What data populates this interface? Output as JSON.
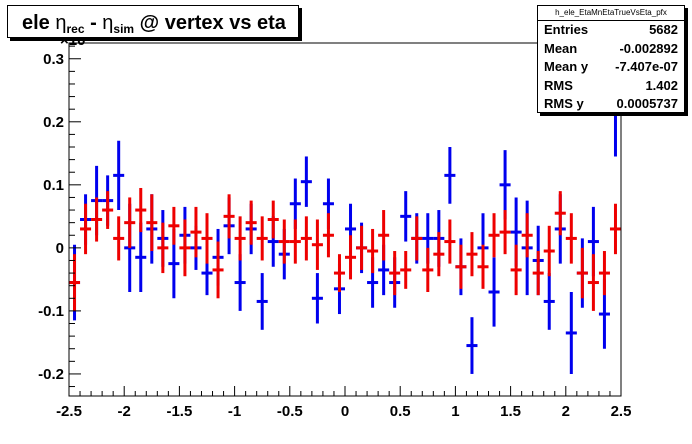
{
  "title": {
    "pre": "ele ",
    "eta1": "η",
    "sub1": "rec",
    "mid": " - ",
    "eta2": "η",
    "sub2": "sim",
    "post": " @ vertex vs eta"
  },
  "exponent_label": "×10",
  "stats": {
    "name": "h_ele_EtaMnEtaTrueVsEta_pfx",
    "rows": [
      {
        "label": "Entries",
        "value": "5682"
      },
      {
        "label": "Mean",
        "value": "-0.002892"
      },
      {
        "label": "Mean y",
        "value": "-7.407e-07"
      },
      {
        "label": "RMS",
        "value": "1.402"
      },
      {
        "label": "RMS y",
        "value": "0.0005737"
      }
    ]
  },
  "chart_data": {
    "type": "scatter",
    "xlim": [
      -2.5,
      2.5
    ],
    "ylim": [
      -0.235,
      0.325
    ],
    "xticks": [
      "-2.5",
      "-2",
      "-1.5",
      "-1",
      "-0.5",
      "0",
      "0.5",
      "1",
      "1.5",
      "2",
      "2.5"
    ],
    "yticks": [
      "-0.2",
      "-0.1",
      "0",
      "0.1",
      "0.2",
      "0.3"
    ],
    "colors": {
      "blue": "#0000ee",
      "red": "#ee0000"
    },
    "blue_series": [
      [
        -2.45,
        -0.055,
        0.06
      ],
      [
        -2.35,
        0.045,
        0.04
      ],
      [
        -2.25,
        0.075,
        0.055
      ],
      [
        -2.15,
        0.075,
        0.04
      ],
      [
        -2.05,
        0.115,
        0.055
      ],
      [
        -1.95,
        0.0,
        0.07
      ],
      [
        -1.85,
        -0.015,
        0.055
      ],
      [
        -1.75,
        0.03,
        0.055
      ],
      [
        -1.65,
        0.015,
        0.045
      ],
      [
        -1.55,
        -0.025,
        0.055
      ],
      [
        -1.45,
        0.02,
        0.045
      ],
      [
        -1.35,
        0.0,
        0.035
      ],
      [
        -1.25,
        -0.04,
        0.035
      ],
      [
        -1.15,
        -0.015,
        0.045
      ],
      [
        -1.05,
        0.035,
        0.045
      ],
      [
        -0.95,
        -0.055,
        0.045
      ],
      [
        -0.85,
        0.03,
        0.04
      ],
      [
        -0.75,
        -0.085,
        0.045
      ],
      [
        -0.65,
        0.01,
        0.04
      ],
      [
        -0.55,
        -0.01,
        0.04
      ],
      [
        -0.45,
        0.07,
        0.04
      ],
      [
        -0.35,
        0.105,
        0.04
      ],
      [
        -0.25,
        -0.08,
        0.04
      ],
      [
        -0.15,
        0.07,
        0.04
      ],
      [
        -0.05,
        -0.065,
        0.04
      ],
      [
        0.05,
        0.03,
        0.04
      ],
      [
        0.15,
        0.0,
        0.04
      ],
      [
        0.25,
        -0.055,
        0.04
      ],
      [
        0.35,
        -0.035,
        0.04
      ],
      [
        0.45,
        -0.055,
        0.04
      ],
      [
        0.55,
        0.05,
        0.04
      ],
      [
        0.65,
        0.015,
        0.04
      ],
      [
        0.75,
        0.015,
        0.04
      ],
      [
        0.85,
        0.015,
        0.045
      ],
      [
        0.95,
        0.115,
        0.045
      ],
      [
        1.05,
        -0.03,
        0.045
      ],
      [
        1.15,
        -0.155,
        0.045
      ],
      [
        1.25,
        0.0,
        0.055
      ],
      [
        1.35,
        -0.07,
        0.055
      ],
      [
        1.45,
        0.1,
        0.055
      ],
      [
        1.55,
        0.025,
        0.055
      ],
      [
        1.65,
        0.0,
        0.075
      ],
      [
        1.75,
        -0.02,
        0.055
      ],
      [
        1.85,
        -0.085,
        0.045
      ],
      [
        1.95,
        0.03,
        0.055
      ],
      [
        2.05,
        -0.135,
        0.065
      ],
      [
        2.15,
        -0.04,
        0.055
      ],
      [
        2.25,
        0.01,
        0.055
      ],
      [
        2.35,
        -0.105,
        0.055
      ],
      [
        2.45,
        0.215,
        0.07
      ]
    ],
    "red_series": [
      [
        -2.45,
        -0.055,
        0.045
      ],
      [
        -2.35,
        0.03,
        0.04
      ],
      [
        -2.25,
        0.045,
        0.035
      ],
      [
        -2.15,
        0.06,
        0.03
      ],
      [
        -2.05,
        0.015,
        0.035
      ],
      [
        -1.95,
        0.04,
        0.04
      ],
      [
        -1.85,
        0.06,
        0.035
      ],
      [
        -1.75,
        0.04,
        0.045
      ],
      [
        -1.65,
        0.0,
        0.04
      ],
      [
        -1.55,
        0.035,
        0.03
      ],
      [
        -1.45,
        0.0,
        0.045
      ],
      [
        -1.35,
        0.025,
        0.04
      ],
      [
        -1.25,
        0.015,
        0.04
      ],
      [
        -1.15,
        -0.035,
        0.045
      ],
      [
        -1.05,
        0.05,
        0.035
      ],
      [
        -0.95,
        0.015,
        0.035
      ],
      [
        -0.85,
        0.04,
        0.035
      ],
      [
        -0.75,
        0.015,
        0.035
      ],
      [
        -0.65,
        0.045,
        0.03
      ],
      [
        -0.55,
        0.01,
        0.035
      ],
      [
        -0.45,
        0.01,
        0.035
      ],
      [
        -0.35,
        0.015,
        0.035
      ],
      [
        -0.25,
        0.005,
        0.04
      ],
      [
        -0.15,
        0.02,
        0.035
      ],
      [
        -0.05,
        -0.04,
        0.03
      ],
      [
        0.05,
        -0.015,
        0.035
      ],
      [
        0.15,
        0.0,
        0.035
      ],
      [
        0.25,
        -0.005,
        0.035
      ],
      [
        0.35,
        0.02,
        0.04
      ],
      [
        0.45,
        -0.04,
        0.035
      ],
      [
        0.55,
        -0.035,
        0.03
      ],
      [
        0.65,
        0.015,
        0.035
      ],
      [
        0.75,
        -0.035,
        0.035
      ],
      [
        0.85,
        -0.01,
        0.035
      ],
      [
        0.95,
        0.01,
        0.035
      ],
      [
        1.05,
        -0.03,
        0.035
      ],
      [
        1.15,
        -0.01,
        0.035
      ],
      [
        1.25,
        -0.03,
        0.035
      ],
      [
        1.35,
        0.02,
        0.035
      ],
      [
        1.45,
        0.025,
        0.035
      ],
      [
        1.55,
        -0.035,
        0.04
      ],
      [
        1.65,
        0.02,
        0.035
      ],
      [
        1.75,
        -0.04,
        0.035
      ],
      [
        1.85,
        -0.005,
        0.04
      ],
      [
        1.95,
        0.055,
        0.035
      ],
      [
        2.05,
        0.015,
        0.04
      ],
      [
        2.15,
        -0.04,
        0.04
      ],
      [
        2.25,
        -0.055,
        0.045
      ],
      [
        2.35,
        -0.04,
        0.035
      ],
      [
        2.45,
        0.03,
        0.04
      ]
    ]
  }
}
